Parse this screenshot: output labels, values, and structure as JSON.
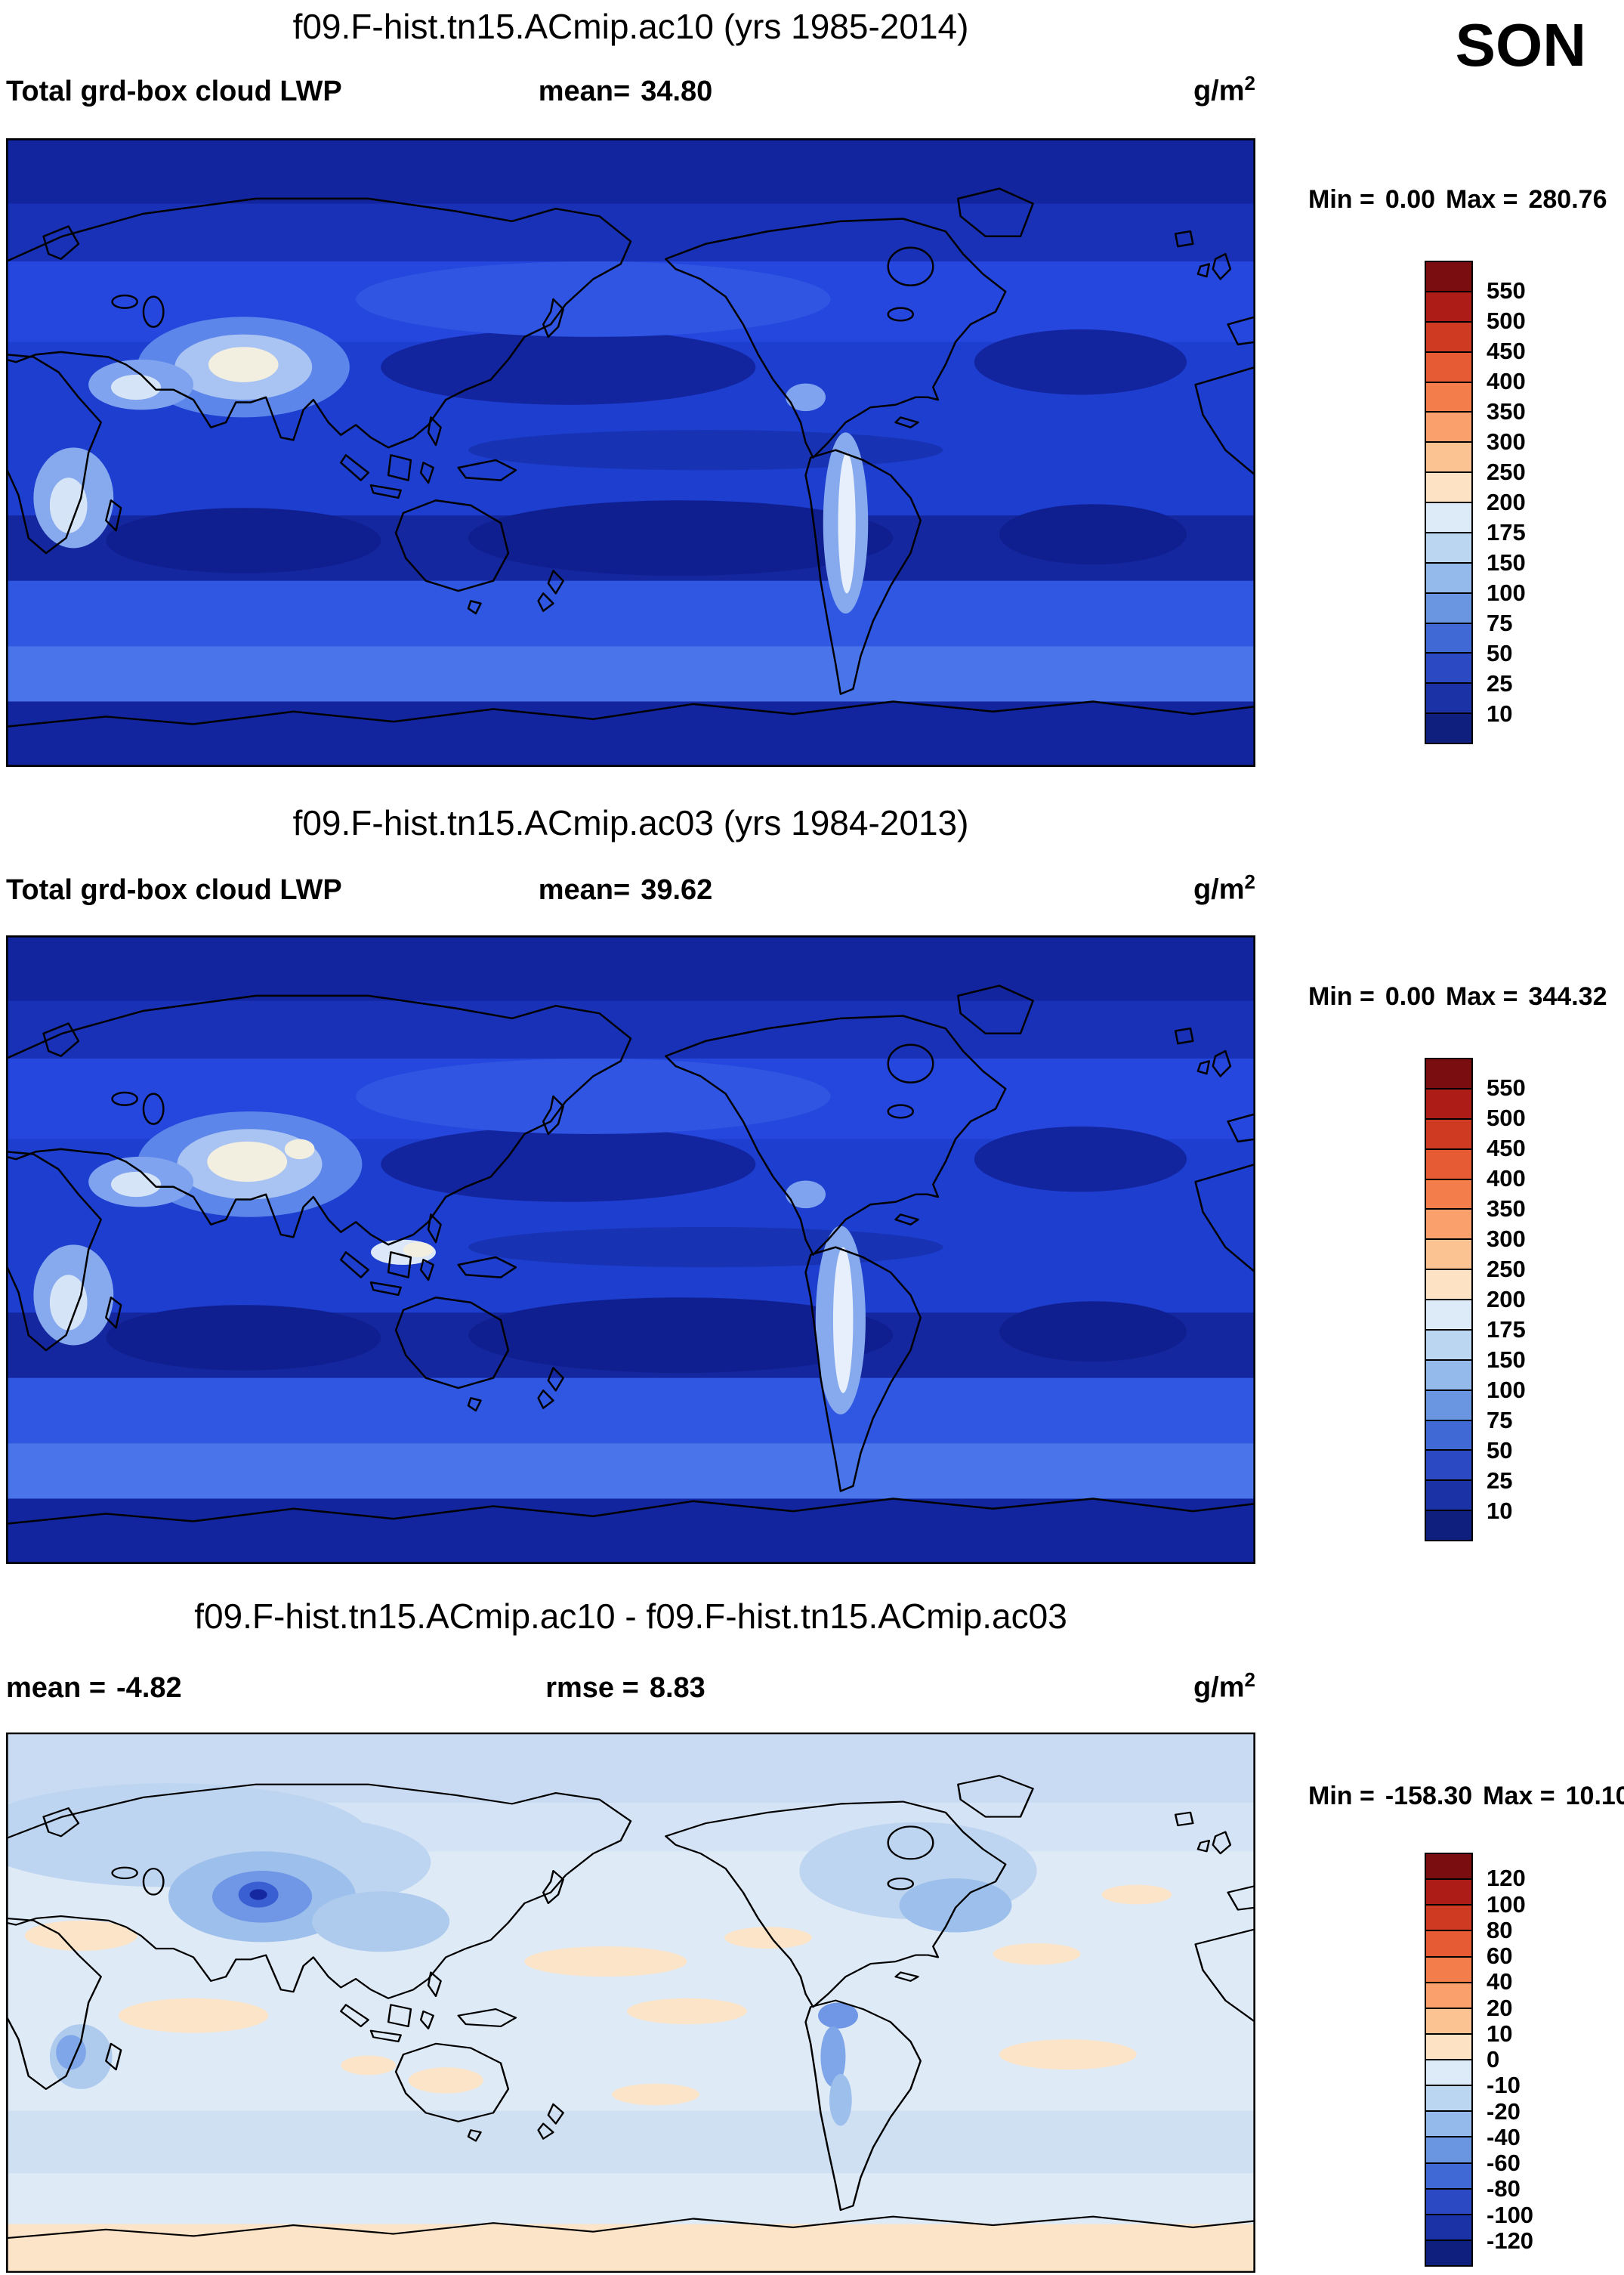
{
  "page": {
    "season": "SON",
    "background": "#ffffff"
  },
  "panels": [
    {
      "title": "f09.F-hist.tn15.ACmip.ac10 (yrs 1985-2014)",
      "var_label": "Total grd-box cloud LWP",
      "mean_label": "mean=",
      "mean_value": "34.80",
      "units_base": "g/m",
      "units_exp": "2",
      "min_label": "Min =",
      "min_value": "0.00",
      "max_label": "Max =",
      "max_value": "280.76",
      "colorbar": {
        "labels": [
          "550",
          "500",
          "450",
          "400",
          "350",
          "300",
          "250",
          "200",
          "175",
          "150",
          "100",
          "75",
          "50",
          "25",
          "10"
        ],
        "colors": [
          "#7a0d10",
          "#ae1c17",
          "#cf3a22",
          "#e65b33",
          "#f37d4b",
          "#f9a06c",
          "#fbc392",
          "#fde3c3",
          "#ddeaf7",
          "#bad6f0",
          "#93baea",
          "#6a95e1",
          "#4169d6",
          "#2a49c3",
          "#1a32a6",
          "#0f1f7e"
        ]
      }
    },
    {
      "title": "f09.F-hist.tn15.ACmip.ac03 (yrs 1984-2013)",
      "var_label": "Total grd-box cloud LWP",
      "mean_label": "mean=",
      "mean_value": "39.62",
      "units_base": "g/m",
      "units_exp": "2",
      "min_label": "Min =",
      "min_value": "0.00",
      "max_label": "Max =",
      "max_value": "344.32",
      "colorbar": {
        "labels": [
          "550",
          "500",
          "450",
          "400",
          "350",
          "300",
          "250",
          "200",
          "175",
          "150",
          "100",
          "75",
          "50",
          "25",
          "10"
        ],
        "colors": [
          "#7a0d10",
          "#ae1c17",
          "#cf3a22",
          "#e65b33",
          "#f37d4b",
          "#f9a06c",
          "#fbc392",
          "#fde3c3",
          "#ddeaf7",
          "#bad6f0",
          "#93baea",
          "#6a95e1",
          "#4169d6",
          "#2a49c3",
          "#1a32a6",
          "#0f1f7e"
        ]
      }
    },
    {
      "title": "f09.F-hist.tn15.ACmip.ac10 - f09.F-hist.tn15.ACmip.ac03",
      "mean_label": "mean =",
      "mean_value": "-4.82",
      "rmse_label": "rmse =",
      "rmse_value": "8.83",
      "units_base": "g/m",
      "units_exp": "2",
      "min_label": "Min =",
      "min_value": "-158.30",
      "max_label": "Max =",
      "max_value": "10.10",
      "colorbar": {
        "labels": [
          "120",
          "100",
          "80",
          "60",
          "40",
          "20",
          "10",
          "0",
          "-10",
          "-20",
          "-40",
          "-60",
          "-80",
          "-100",
          "-120"
        ],
        "colors": [
          "#7a0d10",
          "#ae1c17",
          "#cf3a22",
          "#e65b33",
          "#f37d4b",
          "#f9a06c",
          "#fbc392",
          "#fde3c3",
          "#ddeaf7",
          "#bad6f0",
          "#93baea",
          "#6a95e1",
          "#4169d6",
          "#2a49c3",
          "#1a32a6",
          "#0f1f7e"
        ]
      }
    }
  ],
  "chart_data": [
    {
      "type": "heatmap",
      "subtype": "global-filled-contour-map",
      "projection": "cylindrical-equidistant, Pacific-centered (0-360E)",
      "title": "f09.F-hist.tn15.ACmip.ac10 (yrs 1985-2014)",
      "variable": "Total grd-box cloud LWP",
      "units": "g/m^2",
      "season": "SON",
      "mean": 34.8,
      "min": 0.0,
      "max": 280.76,
      "contour_levels": [
        10,
        25,
        50,
        75,
        100,
        150,
        175,
        200,
        250,
        300,
        350,
        400,
        450,
        500,
        550
      ],
      "palette": "dark-blue (low) to dark-red (high), map dominated by blues (values mostly < 200)"
    },
    {
      "type": "heatmap",
      "subtype": "global-filled-contour-map",
      "projection": "cylindrical-equidistant, Pacific-centered (0-360E)",
      "title": "f09.F-hist.tn15.ACmip.ac03 (yrs 1984-2013)",
      "variable": "Total grd-box cloud LWP",
      "units": "g/m^2",
      "season": "SON",
      "mean": 39.62,
      "min": 0.0,
      "max": 344.32,
      "contour_levels": [
        10,
        25,
        50,
        75,
        100,
        150,
        175,
        200,
        250,
        300,
        350,
        400,
        450,
        500,
        550
      ],
      "palette": "dark-blue (low) to dark-red (high), map dominated by blues (values mostly < 200)"
    },
    {
      "type": "heatmap",
      "subtype": "global-difference-map",
      "projection": "cylindrical-equidistant, Pacific-centered (0-360E)",
      "title": "f09.F-hist.tn15.ACmip.ac10 - f09.F-hist.tn15.ACmip.ac03",
      "variable": "Total grd-box cloud LWP difference",
      "units": "g/m^2",
      "season": "SON",
      "mean": -4.82,
      "rmse": 8.83,
      "min": -158.3,
      "max": 10.1,
      "contour_levels": [
        -120,
        -100,
        -80,
        -60,
        -40,
        -20,
        -10,
        0,
        10,
        20,
        40,
        60,
        80,
        100,
        120
      ],
      "palette": "blue negative / red positive; map mostly pale blue (-10 to 0) with scattered pale-orange (0 to 10) patches and strong negative spot over Tibet/East Asia"
    }
  ]
}
